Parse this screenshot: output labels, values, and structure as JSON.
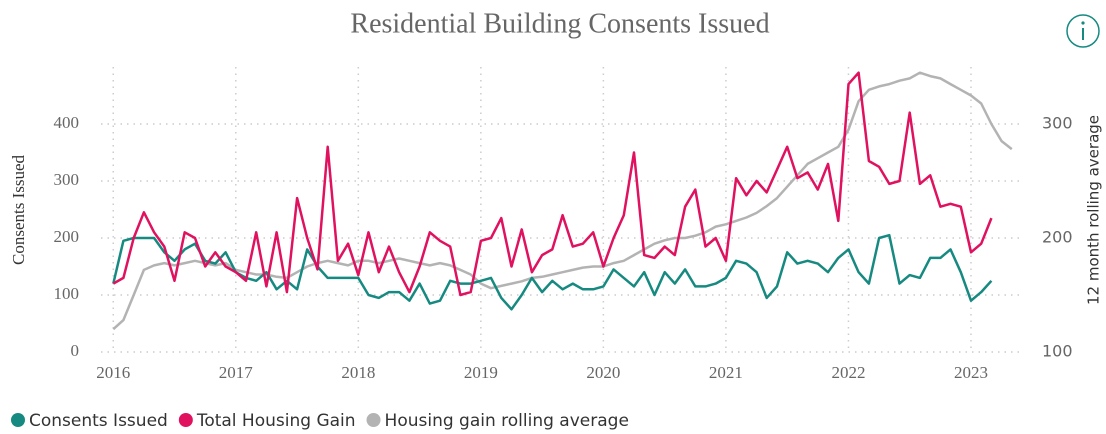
{
  "chart_data": {
    "type": "line",
    "title": "Residential Building Consents Issued",
    "ylabel": "Consents Issued",
    "y2label": "12 month rolling average",
    "x": [
      2016,
      2016.083,
      2016.167,
      2016.25,
      2016.333,
      2016.417,
      2016.5,
      2016.583,
      2016.667,
      2016.75,
      2016.833,
      2016.917,
      2017,
      2017.083,
      2017.167,
      2017.25,
      2017.333,
      2017.417,
      2017.5,
      2017.583,
      2017.667,
      2017.75,
      2017.833,
      2017.917,
      2018,
      2018.083,
      2018.167,
      2018.25,
      2018.333,
      2018.417,
      2018.5,
      2018.583,
      2018.667,
      2018.75,
      2018.833,
      2018.917,
      2019,
      2019.083,
      2019.167,
      2019.25,
      2019.333,
      2019.417,
      2019.5,
      2019.583,
      2019.667,
      2019.75,
      2019.833,
      2019.917,
      2020,
      2020.083,
      2020.167,
      2020.25,
      2020.333,
      2020.417,
      2020.5,
      2020.583,
      2020.667,
      2020.75,
      2020.833,
      2020.917,
      2021,
      2021.083,
      2021.167,
      2021.25,
      2021.333,
      2021.417,
      2021.5,
      2021.583,
      2021.667,
      2021.75,
      2021.833,
      2021.917,
      2022,
      2022.083,
      2022.167,
      2022.25,
      2022.333,
      2022.417,
      2022.5,
      2022.583,
      2022.667,
      2022.75,
      2022.833,
      2022.917,
      2023,
      2023.083,
      2023.167,
      2023.25,
      2023.333
    ],
    "series": [
      {
        "name": "Consents Issued",
        "color": "#168a80",
        "values": [
          120,
          195,
          200,
          200,
          200,
          175,
          160,
          180,
          190,
          160,
          155,
          175,
          140,
          130,
          125,
          140,
          110,
          125,
          110,
          180,
          150,
          130,
          130,
          130,
          130,
          100,
          95,
          105,
          105,
          90,
          120,
          85,
          90,
          125,
          120,
          120,
          125,
          130,
          95,
          75,
          100,
          130,
          105,
          125,
          110,
          120,
          110,
          110,
          115,
          145,
          130,
          115,
          140,
          100,
          140,
          120,
          145,
          115,
          115,
          120,
          130,
          160,
          155,
          140,
          95,
          115,
          175,
          155,
          160,
          155,
          140,
          165,
          180,
          140,
          120,
          200,
          205,
          120,
          135,
          130,
          165,
          165,
          180,
          140,
          90,
          105,
          125,
          null,
          null
        ]
      },
      {
        "name": "Total Housing Gain",
        "color": "#e0115f",
        "values": [
          120,
          130,
          200,
          245,
          210,
          185,
          125,
          210,
          200,
          150,
          175,
          150,
          140,
          125,
          210,
          115,
          210,
          105,
          270,
          200,
          145,
          360,
          160,
          190,
          135,
          210,
          140,
          185,
          140,
          105,
          150,
          210,
          195,
          185,
          100,
          105,
          195,
          200,
          235,
          150,
          215,
          140,
          170,
          180,
          240,
          185,
          190,
          210,
          150,
          200,
          240,
          350,
          170,
          165,
          185,
          170,
          255,
          285,
          185,
          200,
          160,
          305,
          275,
          300,
          280,
          320,
          360,
          305,
          315,
          285,
          330,
          230,
          470,
          490,
          335,
          325,
          295,
          300,
          420,
          295,
          310,
          255,
          260,
          255,
          175,
          190,
          235,
          null,
          null
        ]
      },
      {
        "name": "Housing gain rolling average",
        "color": "#b3b3b3",
        "axis": "y2",
        "values": [
          120,
          128,
          150,
          172,
          176,
          178,
          176,
          178,
          180,
          178,
          176,
          178,
          172,
          170,
          168,
          168,
          166,
          165,
          170,
          175,
          178,
          180,
          178,
          176,
          180,
          180,
          178,
          180,
          182,
          180,
          178,
          176,
          178,
          176,
          172,
          168,
          160,
          156,
          158,
          160,
          162,
          165,
          166,
          168,
          170,
          172,
          174,
          175,
          175,
          178,
          180,
          185,
          190,
          195,
          198,
          200,
          200,
          202,
          205,
          210,
          212,
          215,
          218,
          222,
          228,
          235,
          245,
          255,
          265,
          270,
          275,
          280,
          295,
          320,
          330,
          333,
          335,
          338,
          340,
          345,
          342,
          340,
          335,
          330,
          325,
          318,
          300,
          285,
          278
        ]
      }
    ],
    "xlim": [
      2015.9,
      2023.4
    ],
    "xticks": [
      2016,
      2017,
      2018,
      2019,
      2020,
      2021,
      2022,
      2023
    ],
    "ylim": [
      0,
      500
    ],
    "yticks": [
      0,
      100,
      200,
      300,
      400
    ],
    "y2lim": [
      100,
      350
    ],
    "y2ticks": [
      100,
      200,
      300
    ],
    "grid": true,
    "legend": "bottom"
  }
}
